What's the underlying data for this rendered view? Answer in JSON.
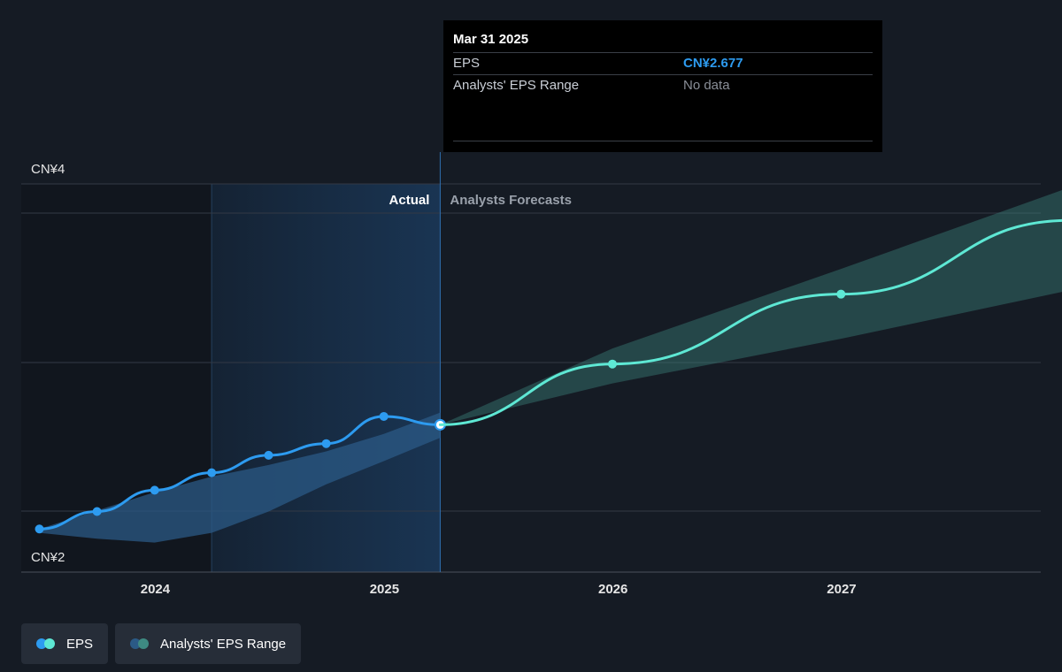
{
  "tooltip": {
    "date": "Mar 31 2025",
    "eps_label": "EPS",
    "eps_value": "CN¥2.677",
    "range_label": "Analysts' EPS Range",
    "range_value": "No data"
  },
  "labels": {
    "actual": "Actual",
    "forecast": "Analysts Forecasts"
  },
  "legend": [
    {
      "label": "EPS",
      "colors": [
        "#2d9bf0",
        "#5ee8d4"
      ]
    },
    {
      "label": "Analysts' EPS Range",
      "colors": [
        "#2b5a86",
        "#3e8a82"
      ]
    }
  ],
  "colors": {
    "actual_line": "#2d9bf0",
    "forecast_line": "#5ee8d4",
    "actual_band": "#2b5a86",
    "forecast_band": "#3e8a82",
    "highlight": "#1b3a5c"
  },
  "chart_data": {
    "type": "line",
    "y_ticks": [
      {
        "value": 4,
        "label": "CN¥4"
      },
      {
        "value": 2,
        "label": "CN¥2"
      }
    ],
    "ylim": [
      2,
      4
    ],
    "xlim": [
      "2023-06-01",
      "2027-11-15"
    ],
    "x_ticks": [
      {
        "date": "2024-01-01",
        "label": "2024"
      },
      {
        "date": "2025-01-01",
        "label": "2025"
      },
      {
        "date": "2026-01-01",
        "label": "2026"
      },
      {
        "date": "2027-01-01",
        "label": "2027"
      }
    ],
    "divider_date": "2025-03-31",
    "highlight_range": [
      "2024-03-31",
      "2025-03-31"
    ],
    "series": [
      {
        "name": "EPS",
        "kind": "actual",
        "points": [
          {
            "date": "2023-06-30",
            "value": 2.14
          },
          {
            "date": "2023-09-30",
            "value": 2.23
          },
          {
            "date": "2023-12-31",
            "value": 2.34
          },
          {
            "date": "2024-03-31",
            "value": 2.43
          },
          {
            "date": "2024-06-30",
            "value": 2.52
          },
          {
            "date": "2024-09-30",
            "value": 2.58
          },
          {
            "date": "2024-12-31",
            "value": 2.72
          },
          {
            "date": "2025-03-31",
            "value": 2.677
          }
        ]
      },
      {
        "name": "EPS",
        "kind": "forecast",
        "points": [
          {
            "date": "2025-03-31",
            "value": 2.677
          },
          {
            "date": "2025-12-31",
            "value": 2.99
          },
          {
            "date": "2026-12-31",
            "value": 3.35
          },
          {
            "date": "2027-12-31",
            "value": 3.73
          }
        ]
      }
    ],
    "ranges": [
      {
        "name": "Analysts' EPS Range",
        "kind": "actual",
        "upper": [
          {
            "date": "2023-06-30",
            "value": 2.14
          },
          {
            "date": "2023-12-31",
            "value": 2.33
          },
          {
            "date": "2024-03-31",
            "value": 2.41
          },
          {
            "date": "2024-06-30",
            "value": 2.47
          },
          {
            "date": "2024-09-30",
            "value": 2.54
          },
          {
            "date": "2024-12-31",
            "value": 2.63
          },
          {
            "date": "2025-03-31",
            "value": 2.74
          }
        ],
        "lower": [
          {
            "date": "2023-06-30",
            "value": 2.12
          },
          {
            "date": "2023-09-30",
            "value": 2.09
          },
          {
            "date": "2023-12-31",
            "value": 2.07
          },
          {
            "date": "2024-03-31",
            "value": 2.12
          },
          {
            "date": "2024-06-30",
            "value": 2.23
          },
          {
            "date": "2024-09-30",
            "value": 2.37
          },
          {
            "date": "2024-12-31",
            "value": 2.49
          },
          {
            "date": "2025-03-31",
            "value": 2.61
          }
        ]
      },
      {
        "name": "Analysts' EPS Range",
        "kind": "forecast",
        "upper": [
          {
            "date": "2025-03-31",
            "value": 2.677
          },
          {
            "date": "2025-12-31",
            "value": 3.07
          },
          {
            "date": "2026-12-31",
            "value": 3.48
          },
          {
            "date": "2027-12-31",
            "value": 3.9
          }
        ],
        "lower": [
          {
            "date": "2025-03-31",
            "value": 2.677
          },
          {
            "date": "2025-12-31",
            "value": 2.89
          },
          {
            "date": "2026-12-31",
            "value": 3.12
          },
          {
            "date": "2027-12-31",
            "value": 3.37
          }
        ]
      }
    ],
    "grid": true,
    "legend_position": "bottom-left"
  }
}
